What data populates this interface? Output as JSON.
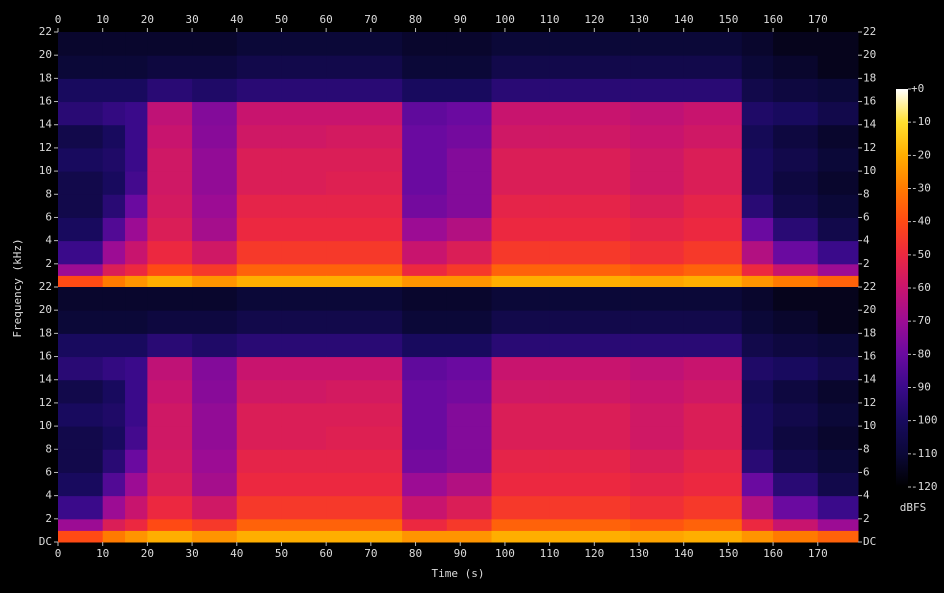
{
  "chart_data": {
    "type": "heatmap",
    "xlabel": "Time (s)",
    "ylabel": "Frequency (kHz)",
    "zlabel": "dBFS",
    "xbins": [
      0,
      10,
      15,
      20,
      30,
      40,
      50,
      60,
      77,
      87,
      97,
      110,
      128,
      140,
      153,
      160,
      170,
      179
    ],
    "ybins": [
      0,
      1,
      2,
      4,
      6,
      8,
      10,
      12,
      14,
      16,
      18,
      20,
      22
    ],
    "xlim": [
      0,
      179
    ],
    "ylim": [
      0,
      22
    ],
    "zlim": [
      -120,
      0
    ],
    "xticks": [
      0,
      10,
      20,
      30,
      40,
      50,
      60,
      70,
      80,
      90,
      100,
      110,
      120,
      130,
      140,
      150,
      160,
      170
    ],
    "yticks": [
      {
        "value": 0,
        "label": "DC"
      },
      2,
      4,
      6,
      8,
      10,
      12,
      14,
      16,
      18,
      20,
      22
    ],
    "zticks": [
      {
        "value": 0,
        "label": "+0"
      },
      -10,
      -20,
      -30,
      -40,
      -50,
      -60,
      -70,
      -80,
      -90,
      -100,
      -110,
      -120
    ],
    "colormap": [
      "#000000",
      "#0b0838",
      "#180a5e",
      "#3a0a8a",
      "#6a0aa0",
      "#9c0c94",
      "#c8146e",
      "#ec2840",
      "#ff4a14",
      "#ff7a00",
      "#ffae00",
      "#ffe030",
      "#ffffff"
    ],
    "channels": [
      {
        "values": [
          [
            -40,
            -70,
            -90,
            -100,
            -105,
            -105,
            -100,
            -105,
            -95,
            -100,
            -110,
            -112
          ],
          [
            -30,
            -55,
            -70,
            -85,
            -95,
            -100,
            -98,
            -100,
            -92,
            -100,
            -110,
            -112
          ],
          [
            -25,
            -50,
            -60,
            -70,
            -80,
            -88,
            -90,
            -90,
            -90,
            -100,
            -110,
            -112
          ],
          [
            -20,
            -40,
            -50,
            -55,
            -57,
            -58,
            -58,
            -60,
            -62,
            -95,
            -108,
            -112
          ],
          [
            -25,
            -45,
            -58,
            -68,
            -70,
            -72,
            -72,
            -74,
            -75,
            -98,
            -108,
            -112
          ],
          [
            -20,
            -35,
            -45,
            -50,
            -52,
            -55,
            -55,
            -58,
            -60,
            -95,
            -105,
            -110
          ],
          [
            -20,
            -35,
            -45,
            -50,
            -52,
            -55,
            -55,
            -58,
            -60,
            -95,
            -105,
            -110
          ],
          [
            -20,
            -35,
            -45,
            -50,
            -52,
            -54,
            -55,
            -57,
            -60,
            -95,
            -105,
            -110
          ],
          [
            -25,
            -50,
            -60,
            -70,
            -78,
            -80,
            -80,
            -80,
            -82,
            -100,
            -110,
            -112
          ],
          [
            -25,
            -45,
            -55,
            -65,
            -75,
            -75,
            -75,
            -78,
            -80,
            -100,
            -110,
            -112
          ],
          [
            -20,
            -35,
            -45,
            -50,
            -52,
            -55,
            -55,
            -58,
            -60,
            -95,
            -105,
            -110
          ],
          [
            -20,
            -35,
            -45,
            -50,
            -52,
            -55,
            -55,
            -58,
            -60,
            -95,
            -105,
            -110
          ],
          [
            -22,
            -38,
            -48,
            -52,
            -55,
            -58,
            -58,
            -60,
            -62,
            -95,
            -105,
            -110
          ],
          [
            -20,
            -35,
            -45,
            -50,
            -52,
            -55,
            -55,
            -58,
            -60,
            -95,
            -105,
            -110
          ],
          [
            -25,
            -50,
            -65,
            -80,
            -95,
            -100,
            -100,
            -102,
            -98,
            -105,
            -110,
            -112
          ],
          [
            -30,
            -60,
            -80,
            -95,
            -105,
            -108,
            -105,
            -108,
            -100,
            -108,
            -112,
            -115
          ],
          [
            -35,
            -70,
            -90,
            -105,
            -110,
            -112,
            -110,
            -112,
            -105,
            -110,
            -115,
            -115
          ]
        ]
      },
      {
        "values": [
          [
            -40,
            -70,
            -90,
            -100,
            -105,
            -105,
            -100,
            -105,
            -95,
            -100,
            -110,
            -112
          ],
          [
            -30,
            -55,
            -70,
            -85,
            -95,
            -100,
            -98,
            -100,
            -92,
            -100,
            -110,
            -112
          ],
          [
            -25,
            -50,
            -60,
            -70,
            -80,
            -88,
            -90,
            -90,
            -90,
            -100,
            -110,
            -112
          ],
          [
            -20,
            -40,
            -50,
            -55,
            -57,
            -58,
            -58,
            -60,
            -62,
            -95,
            -108,
            -112
          ],
          [
            -25,
            -45,
            -58,
            -68,
            -70,
            -72,
            -72,
            -74,
            -75,
            -98,
            -108,
            -112
          ],
          [
            -20,
            -35,
            -45,
            -50,
            -52,
            -55,
            -55,
            -58,
            -60,
            -95,
            -105,
            -110
          ],
          [
            -20,
            -35,
            -45,
            -50,
            -52,
            -55,
            -55,
            -58,
            -60,
            -95,
            -105,
            -110
          ],
          [
            -20,
            -35,
            -45,
            -50,
            -52,
            -54,
            -55,
            -57,
            -60,
            -95,
            -105,
            -110
          ],
          [
            -25,
            -50,
            -60,
            -70,
            -78,
            -80,
            -80,
            -80,
            -82,
            -100,
            -110,
            -112
          ],
          [
            -25,
            -45,
            -55,
            -65,
            -75,
            -75,
            -75,
            -78,
            -80,
            -100,
            -110,
            -112
          ],
          [
            -20,
            -35,
            -45,
            -50,
            -52,
            -55,
            -55,
            -58,
            -60,
            -95,
            -105,
            -110
          ],
          [
            -20,
            -35,
            -45,
            -50,
            -52,
            -55,
            -55,
            -58,
            -60,
            -95,
            -105,
            -110
          ],
          [
            -22,
            -38,
            -48,
            -52,
            -55,
            -58,
            -58,
            -60,
            -62,
            -95,
            -105,
            -110
          ],
          [
            -20,
            -35,
            -45,
            -50,
            -52,
            -55,
            -55,
            -58,
            -60,
            -95,
            -105,
            -110
          ],
          [
            -25,
            -50,
            -65,
            -80,
            -95,
            -100,
            -100,
            -102,
            -98,
            -105,
            -110,
            -112
          ],
          [
            -30,
            -60,
            -80,
            -95,
            -105,
            -108,
            -105,
            -108,
            -100,
            -108,
            -112,
            -115
          ],
          [
            -35,
            -70,
            -90,
            -105,
            -110,
            -112,
            -110,
            -112,
            -105,
            -110,
            -115,
            -115
          ]
        ]
      }
    ]
  }
}
